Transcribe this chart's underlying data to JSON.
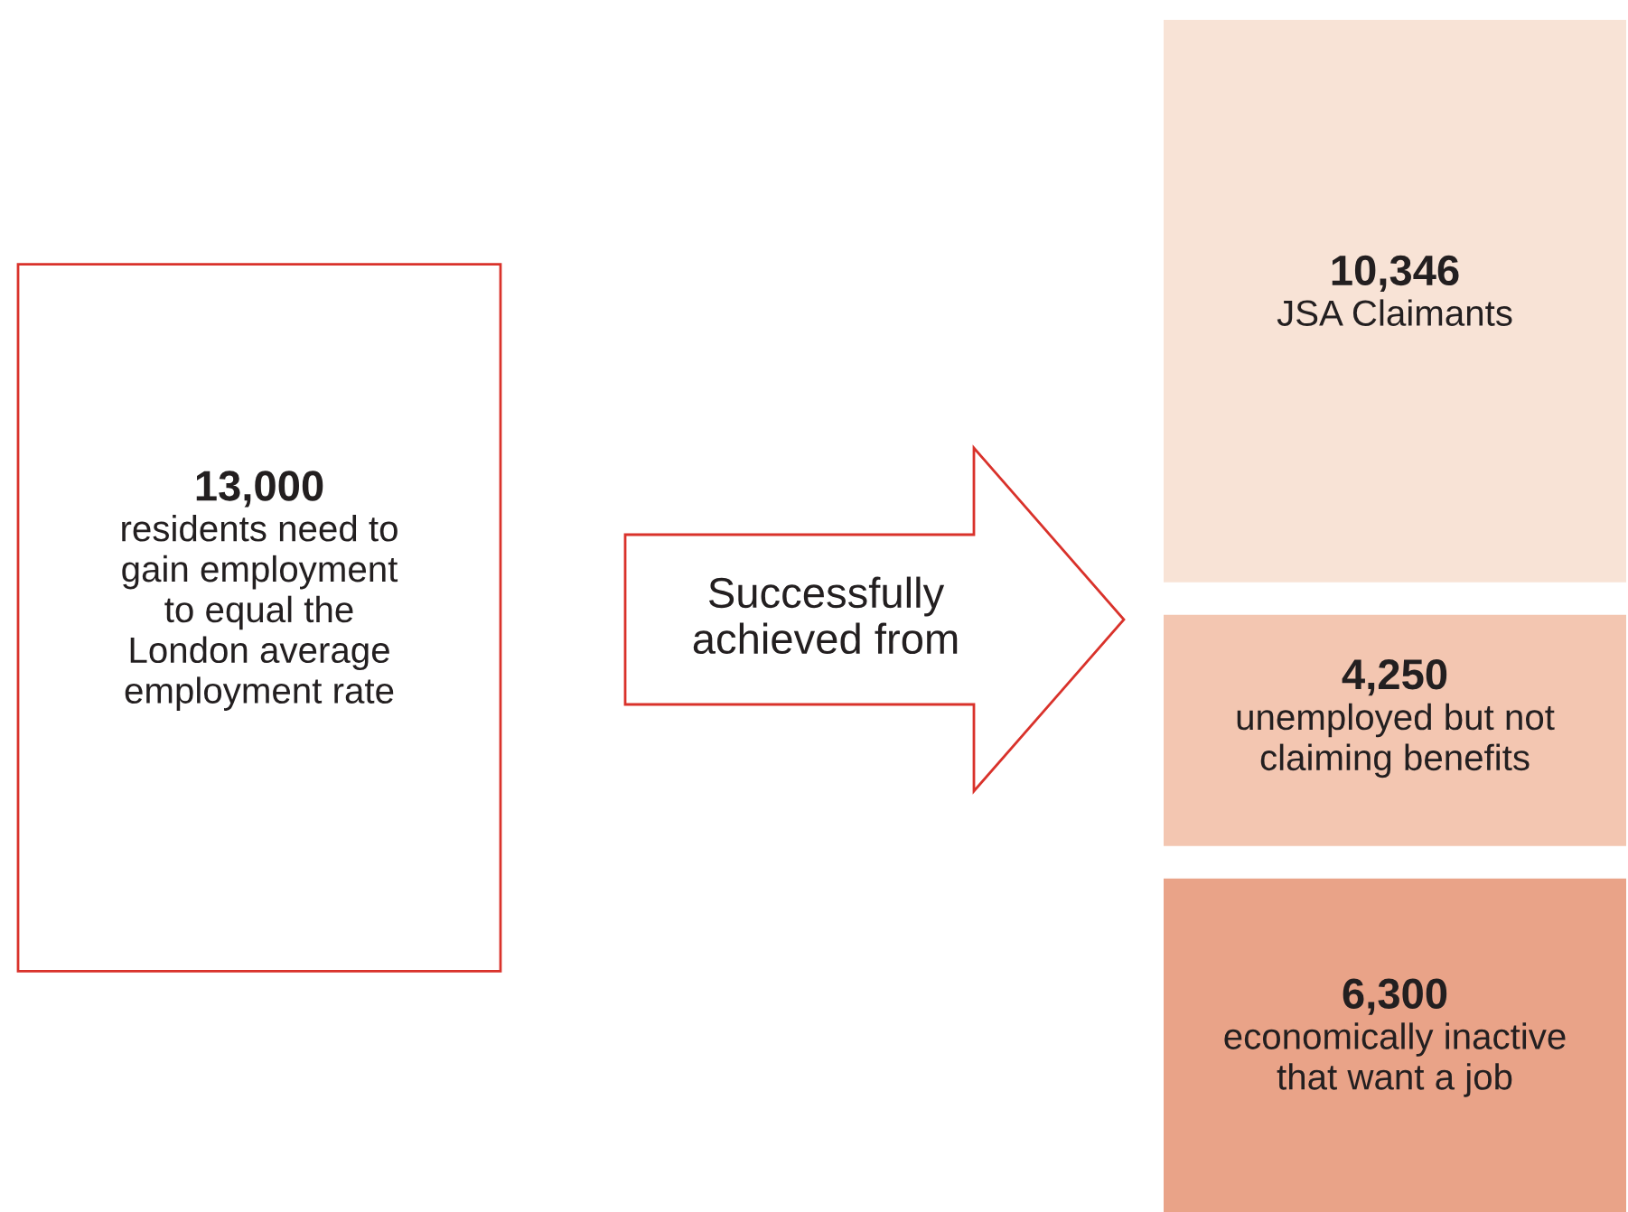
{
  "chart_data": {
    "type": "other",
    "categories": [
      "residents need to\ngain employment\nto equal the\nLondon average\nemployment rate",
      "JSA Claimants",
      "unemployed but not\nclaiming benefits",
      "economically inactive\nthat want a job"
    ],
    "values": [
      13000,
      10346,
      4250,
      6300
    ],
    "value_labels": [
      "13,000",
      "10,346",
      "4,250",
      "6,300"
    ],
    "colors": [
      "#ffffff",
      "#f8e3d6",
      "#f3c6b1",
      "#e9a388"
    ],
    "annotations": [
      "Successfully\nachieved from"
    ]
  }
}
